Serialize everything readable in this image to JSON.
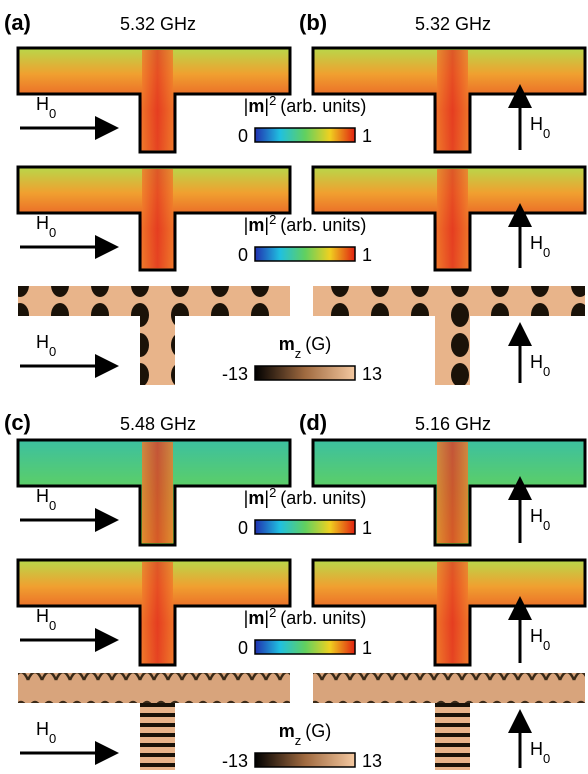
{
  "panels": [
    {
      "label": "(a)",
      "frequency": "5.32 GHz",
      "rows": [
        {
          "field": {
            "symbol": "H",
            "sub": "0"
          }
        },
        {
          "field": {
            "symbol": "H",
            "sub": "0"
          }
        },
        {
          "field": {
            "symbol": "H",
            "sub": "0"
          }
        }
      ]
    },
    {
      "label": "(b)",
      "frequency": "5.32 GHz",
      "rows": [
        {
          "field": {
            "symbol": "H",
            "sub": "0"
          }
        },
        {
          "field": {
            "symbol": "H",
            "sub": "0"
          }
        },
        {
          "field": {
            "symbol": "H",
            "sub": "0"
          }
        }
      ]
    },
    {
      "label": "(c)",
      "frequency": "5.48 GHz",
      "rows": [
        {
          "field": {
            "symbol": "H",
            "sub": "0"
          }
        },
        {
          "field": {
            "symbol": "H",
            "sub": "0"
          }
        },
        {
          "field": {
            "symbol": "H",
            "sub": "0"
          }
        }
      ]
    },
    {
      "label": "(d)",
      "frequency": "5.16 GHz",
      "rows": [
        {
          "field": {
            "symbol": "H",
            "sub": "0"
          }
        },
        {
          "field": {
            "symbol": "H",
            "sub": "0"
          }
        },
        {
          "field": {
            "symbol": "H",
            "sub": "0"
          }
        }
      ]
    }
  ],
  "colorbars": [
    {
      "label": {
        "prefix": "|",
        "symbol": "m",
        "suffix": "|",
        "sup": "2",
        "unit": "(arb. units)"
      },
      "min": 0,
      "max": 1
    },
    {
      "label": {
        "prefix": "|",
        "symbol": "m",
        "suffix": "|",
        "sup": "2",
        "unit": "(arb. units)"
      },
      "min": 0,
      "max": 1
    },
    {
      "label": {
        "symbol": "m",
        "sub": "z",
        "unit": "(G)"
      },
      "min": -13,
      "max": 13
    },
    {
      "label": {
        "prefix": "|",
        "symbol": "m",
        "suffix": "|",
        "sup": "2",
        "unit": "(arb. units)"
      },
      "min": 0,
      "max": 1
    },
    {
      "label": {
        "prefix": "|",
        "symbol": "m",
        "suffix": "|",
        "sup": "2",
        "unit": "(arb. units)"
      },
      "min": 0,
      "max": 1
    },
    {
      "label": {
        "symbol": "m",
        "sub": "z",
        "unit": "(G)"
      },
      "min": -13,
      "max": 13
    }
  ]
}
